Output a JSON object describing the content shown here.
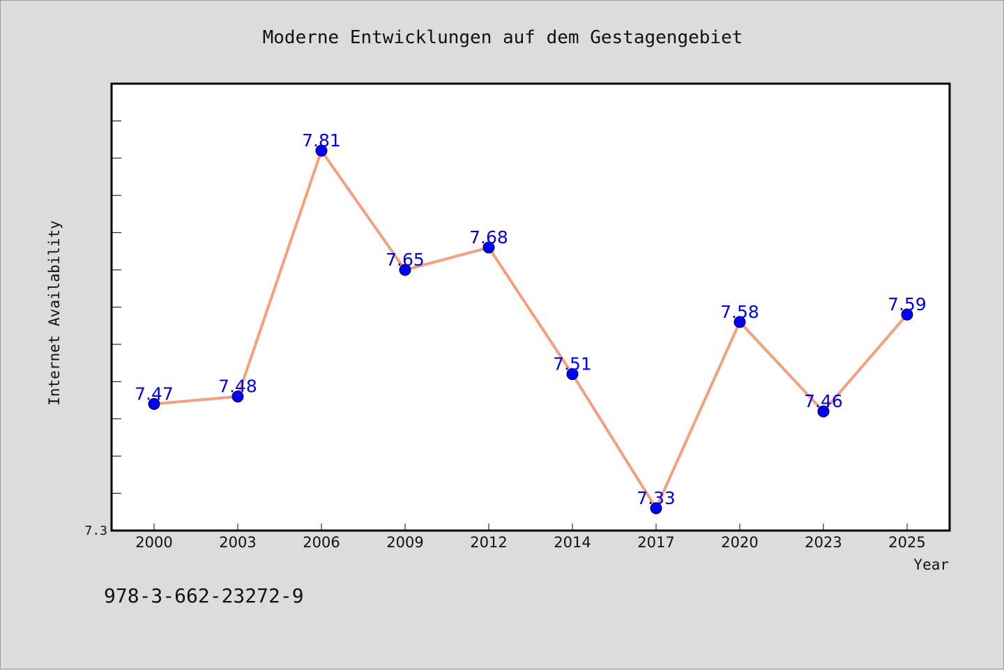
{
  "footer": {
    "isbn": "978-3-662-23272-9"
  },
  "colors": {
    "line": "#f5a07a",
    "marker": "#0000ff",
    "labels": "#0000ff",
    "background": "#dcdcdc",
    "plot_bg": "#ffffff"
  },
  "chart_data": {
    "type": "line",
    "title": "Moderne Entwicklungen auf dem Gestagengebiet",
    "xlabel": "Year",
    "ylabel": "Internet Availability",
    "categories": [
      "2000",
      "2003",
      "2006",
      "2009",
      "2012",
      "2014",
      "2017",
      "2020",
      "2023",
      "2025"
    ],
    "series": [
      {
        "values": [
          7.47,
          7.48,
          7.81,
          7.65,
          7.68,
          7.51,
          7.33,
          7.58,
          7.46,
          7.59
        ]
      }
    ],
    "data_labels": [
      "7.47",
      "7.48",
      "7.81",
      "7.65",
      "7.68",
      "7.51",
      "7.33",
      "7.58",
      "7.46",
      "7.59"
    ],
    "ylim": [
      7.3,
      7.9
    ],
    "yticks_labeled": [
      "7.3"
    ],
    "ytick_values": [
      7.3,
      7.35,
      7.4,
      7.45,
      7.5,
      7.55,
      7.6,
      7.65,
      7.7,
      7.75,
      7.8,
      7.85,
      7.9
    ],
    "grid": false,
    "legend": "none"
  }
}
